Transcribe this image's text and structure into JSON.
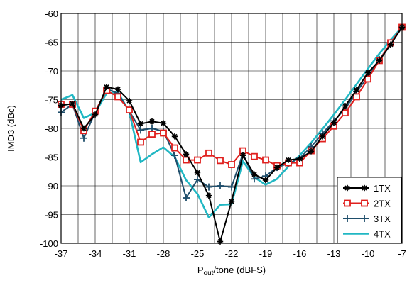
{
  "chart_data": {
    "type": "line",
    "xlabel_main": "P",
    "xlabel_sub": "out",
    "xlabel_rest": "/tone (dBFS)",
    "ylabel": "IMD3 (dBc)",
    "xlim": [
      -37,
      -7
    ],
    "ylim": [
      -100,
      -60
    ],
    "xticks": [
      -37,
      -34,
      -31,
      -28,
      -25,
      -22,
      -19,
      -16,
      -13,
      -10,
      -7
    ],
    "yticks": [
      -100,
      -95,
      -90,
      -85,
      -80,
      -75,
      -70,
      -65,
      -60
    ],
    "grid": true,
    "legend_position": "bottom-right",
    "series": [
      {
        "name": "1TX",
        "color": "#000000",
        "marker": "star",
        "x": [
          -37,
          -36,
          -35,
          -34,
          -33,
          -32,
          -31,
          -30,
          -29,
          -28,
          -27,
          -26,
          -25,
          -24,
          -23,
          -22,
          -21,
          -20,
          -19,
          -18,
          -17,
          -16,
          -15,
          -14,
          -13,
          -12,
          -11,
          -10,
          -9,
          -8,
          -7
        ],
        "y": [
          -76.0,
          -75.7,
          -80.0,
          -77.6,
          -72.8,
          -73.2,
          -75.2,
          -79.2,
          -78.8,
          -79.1,
          -81.4,
          -84.5,
          -87.7,
          -91.7,
          -99.7,
          -92.7,
          -84.7,
          -88.0,
          -89.0,
          -86.8,
          -85.5,
          -85.3,
          -84.0,
          -81.4,
          -79.0,
          -76.1,
          -73.3,
          -70.3,
          -68.2,
          -65.4,
          -62.4
        ]
      },
      {
        "name": "2TX",
        "color": "#e0201e",
        "marker": "square",
        "x": [
          -37,
          -36,
          -35,
          -34,
          -33,
          -32,
          -31,
          -30,
          -29,
          -28,
          -27,
          -26,
          -25,
          -24,
          -23,
          -22,
          -21,
          -20,
          -19,
          -18,
          -17,
          -16,
          -15,
          -14,
          -13,
          -12,
          -11,
          -10,
          -9,
          -8,
          -7
        ],
        "y": [
          -75.8,
          -75.8,
          -80.4,
          -77.0,
          -73.4,
          -74.5,
          -76.8,
          -82.4,
          -81.0,
          -80.8,
          -83.4,
          -85.5,
          -85.5,
          -84.3,
          -85.6,
          -86.3,
          -83.9,
          -84.9,
          -85.5,
          -86.5,
          -86.0,
          -86.0,
          -83.9,
          -81.8,
          -79.6,
          -77.3,
          -74.5,
          -71.4,
          -68.2,
          -65.1,
          -62.4
        ]
      },
      {
        "name": "3TX",
        "color": "#1f4e6b",
        "marker": "plus",
        "x": [
          -37,
          -36,
          -35,
          -34,
          -33,
          -32,
          -31,
          -30,
          -29,
          -28,
          -27,
          -26,
          -25,
          -24,
          -23,
          -22,
          -21,
          -20,
          -19,
          -18,
          -17,
          -16,
          -15,
          -14,
          -13,
          -12,
          -11,
          -10,
          -9,
          -8,
          -7
        ],
        "y": [
          -77.2,
          -75.8,
          -81.7,
          -77.2,
          -73.1,
          -73.9,
          -77.0,
          -80.3,
          -80.0,
          -80.5,
          -84.7,
          -92.1,
          -88.9,
          -90.2,
          -90.0,
          -90.2,
          -84.4,
          -88.8,
          -88.3,
          -86.8,
          -86.1,
          -85.2,
          -83.2,
          -80.9,
          -78.7,
          -76.6,
          -73.6,
          -71.0,
          -68.0,
          -65.3,
          -62.4
        ]
      },
      {
        "name": "4TX",
        "color": "#20b7c3",
        "marker": "none",
        "x": [
          -37,
          -36,
          -35,
          -34,
          -33,
          -32,
          -31,
          -30,
          -29,
          -28,
          -27,
          -26,
          -25,
          -24,
          -23,
          -22,
          -21,
          -20,
          -19,
          -18,
          -17,
          -16,
          -15,
          -14,
          -13,
          -12,
          -11,
          -10,
          -9,
          -8,
          -7
        ],
        "y": [
          -75.0,
          -74.2,
          -78.2,
          -77.3,
          -73.9,
          -73.7,
          -77.1,
          -85.9,
          -84.5,
          -83.3,
          -85.0,
          -89.0,
          -91.4,
          -95.5,
          -93.3,
          -93.2,
          -85.7,
          -88.5,
          -89.8,
          -88.8,
          -86.6,
          -84.7,
          -82.5,
          -80.1,
          -77.6,
          -75.0,
          -72.3,
          -69.6,
          -67.0,
          -64.6,
          -62.4
        ]
      }
    ]
  }
}
